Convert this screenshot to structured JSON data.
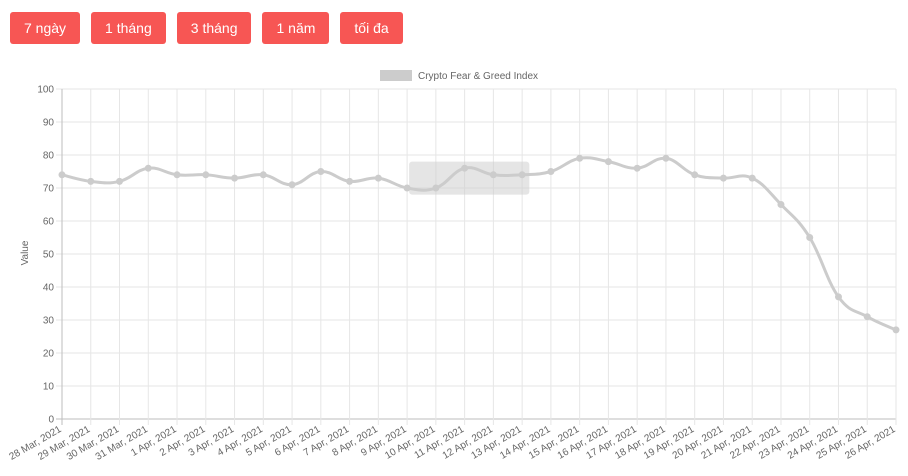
{
  "range_buttons": [
    {
      "label": "7 ngày"
    },
    {
      "label": "1 tháng"
    },
    {
      "label": "3 tháng"
    },
    {
      "label": "1 năm"
    },
    {
      "label": "tối đa"
    }
  ],
  "chart_data": {
    "type": "line",
    "title": "",
    "xlabel": "",
    "ylabel": "Value",
    "ylim": [
      0,
      100
    ],
    "yticks": [
      0,
      10,
      20,
      30,
      40,
      50,
      60,
      70,
      80,
      90,
      100
    ],
    "grid": true,
    "legend_position": "top-center",
    "categories": [
      "28 Mar, 2021",
      "29 Mar, 2021",
      "30 Mar, 2021",
      "31 Mar, 2021",
      "1 Apr, 2021",
      "2 Apr, 2021",
      "3 Apr, 2021",
      "4 Apr, 2021",
      "5 Apr, 2021",
      "6 Apr, 2021",
      "7 Apr, 2021",
      "8 Apr, 2021",
      "9 Apr, 2021",
      "10 Apr, 2021",
      "11 Apr, 2021",
      "12 Apr, 2021",
      "13 Apr, 2021",
      "14 Apr, 2021",
      "15 Apr, 2021",
      "16 Apr, 2021",
      "17 Apr, 2021",
      "18 Apr, 2021",
      "19 Apr, 2021",
      "20 Apr, 2021",
      "21 Apr, 2021",
      "22 Apr, 2021",
      "23 Apr, 2021",
      "24 Apr, 2021",
      "25 Apr, 2021",
      "26 Apr, 2021"
    ],
    "series": [
      {
        "name": "Crypto Fear & Greed Index",
        "values": [
          74,
          72,
          72,
          76,
          74,
          74,
          73,
          74,
          71,
          75,
          72,
          73,
          70,
          70,
          76,
          74,
          74,
          75,
          79,
          78,
          76,
          79,
          74,
          73,
          73,
          65,
          55,
          37,
          31,
          27
        ],
        "color": "#cccccc"
      }
    ],
    "highlight_range": {
      "x_from": "9 Apr, 2021",
      "x_to": "14 Apr, 2021",
      "y_from": 68,
      "y_to": 78,
      "color": "#cccccc"
    }
  }
}
